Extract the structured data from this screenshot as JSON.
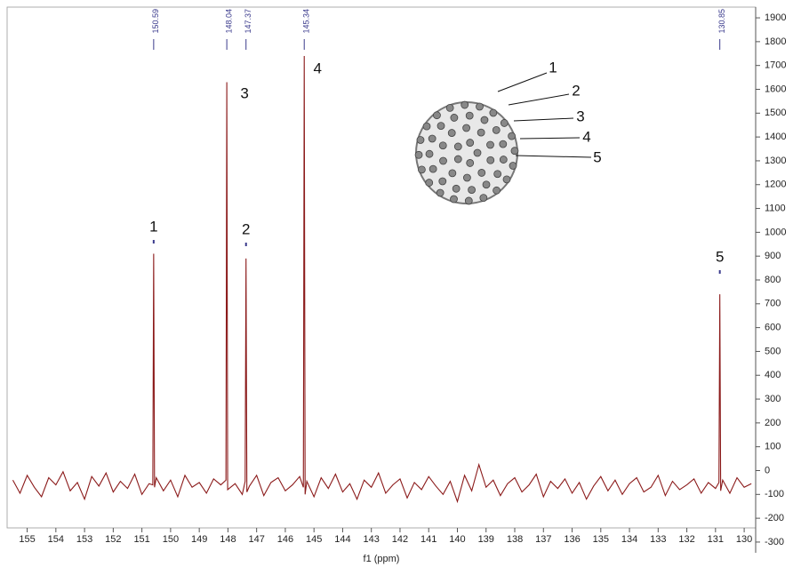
{
  "chart_data": {
    "type": "line",
    "x_label": "f1 (ppm)",
    "color": "#8b1a1a",
    "xlim": [
      155.7,
      129.6
    ],
    "ylim": [
      -345,
      1945
    ],
    "xticks": [
      155,
      154,
      153,
      152,
      151,
      150,
      149,
      148,
      147,
      146,
      145,
      144,
      143,
      142,
      141,
      140,
      139,
      138,
      137,
      136,
      135,
      134,
      133,
      132,
      131,
      130
    ],
    "yticks": [
      -300,
      -200,
      -100,
      0,
      100,
      200,
      300,
      400,
      500,
      600,
      700,
      800,
      900,
      1000,
      1100,
      1200,
      1300,
      1400,
      1500,
      1600,
      1700,
      1800,
      1900
    ],
    "x": [
      155.5,
      155.25,
      155,
      154.75,
      154.5,
      154.25,
      154,
      153.75,
      153.5,
      153.25,
      153,
      152.75,
      152.5,
      152.25,
      152,
      151.75,
      151.5,
      151.25,
      151,
      150.75,
      150.62,
      150.59,
      150.56,
      150.5,
      150.25,
      150,
      149.75,
      149.5,
      149.25,
      149,
      148.75,
      148.5,
      148.25,
      148.07,
      148.04,
      148.01,
      147.75,
      147.5,
      147.4,
      147.37,
      147.34,
      147.25,
      147,
      146.75,
      146.5,
      146.25,
      146,
      145.75,
      145.5,
      145.37,
      145.34,
      145.31,
      145.25,
      145,
      144.75,
      144.5,
      144.25,
      144,
      143.75,
      143.5,
      143.25,
      143,
      142.75,
      142.5,
      142.25,
      142,
      141.75,
      141.5,
      141.25,
      141,
      140.75,
      140.5,
      140.25,
      140,
      139.75,
      139.5,
      139.25,
      139,
      138.75,
      138.5,
      138.25,
      138,
      137.75,
      137.5,
      137.25,
      137,
      136.75,
      136.5,
      136.25,
      136,
      135.75,
      135.5,
      135.25,
      135,
      134.75,
      134.5,
      134.25,
      134,
      133.75,
      133.5,
      133.25,
      133,
      132.75,
      132.5,
      132.25,
      132,
      131.75,
      131.5,
      131.25,
      131,
      130.88,
      130.85,
      130.82,
      130.75,
      130.5,
      130.25,
      130,
      129.75
    ],
    "values": [
      -40,
      -95,
      -20,
      -70,
      -110,
      -30,
      -60,
      -5,
      -85,
      -50,
      -120,
      -25,
      -65,
      -10,
      -90,
      -45,
      -75,
      -15,
      -100,
      -55,
      -60,
      910,
      -70,
      -30,
      -85,
      -40,
      -110,
      -20,
      -70,
      -50,
      -95,
      -35,
      -60,
      -40,
      1630,
      -80,
      -55,
      -100,
      -45,
      890,
      -90,
      -65,
      -20,
      -105,
      -50,
      -30,
      -85,
      -60,
      -25,
      -70,
      1740,
      -100,
      -45,
      -110,
      -30,
      -75,
      -15,
      -90,
      -55,
      -120,
      -40,
      -70,
      -10,
      -95,
      -60,
      -35,
      -115,
      -50,
      -80,
      -25,
      -65,
      -100,
      -45,
      -130,
      -20,
      -85,
      25,
      -70,
      -40,
      -105,
      -55,
      -30,
      -90,
      -60,
      -15,
      -110,
      -45,
      -75,
      -35,
      -95,
      -50,
      -120,
      -65,
      -25,
      -85,
      -40,
      -100,
      -55,
      -30,
      -90,
      -70,
      -20,
      -105,
      -45,
      -80,
      -60,
      -35,
      -95,
      -50,
      -75,
      -50,
      740,
      -85,
      -40,
      -95,
      -30,
      -70,
      -55
    ],
    "peak_labels": [
      150.59,
      148.04,
      147.37,
      145.34,
      130.85
    ],
    "peak_numbers": [
      "1",
      "3",
      "2",
      "4",
      "5"
    ],
    "molecule_labels": [
      "1",
      "2",
      "3",
      "4",
      "5"
    ]
  }
}
